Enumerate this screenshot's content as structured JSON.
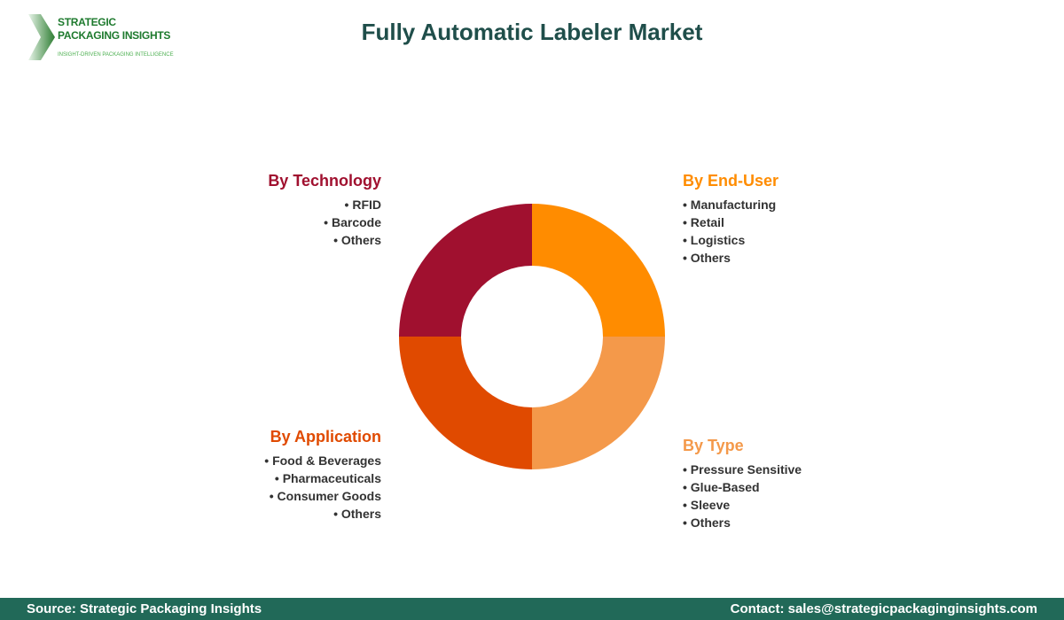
{
  "logo": {
    "line1": "STRATEGIC",
    "line2": "PACKAGING INSIGHTS",
    "tagline": "INSIGHT-DRIVEN PACKAGING INTELLIGENCE"
  },
  "title": "Fully Automatic Labeler Market",
  "segments": [
    {
      "title": "By Technology",
      "color": "#A0102F",
      "items": [
        "RFID",
        "Barcode",
        "Others"
      ]
    },
    {
      "title": "By End-User",
      "color": "#FF8C00",
      "items": [
        "Manufacturing",
        "Retail",
        "Logistics",
        "Others"
      ]
    },
    {
      "title": "By Type",
      "color": "#F4994A",
      "items": [
        "Pressure Sensitive",
        "Glue-Based",
        "Sleeve",
        "Others"
      ]
    },
    {
      "title": "By Application",
      "color": "#E04A00",
      "items": [
        "Food & Beverages",
        "Pharmaceuticals",
        "Consumer Goods",
        "Others"
      ]
    }
  ],
  "footer": {
    "source": "Source: Strategic Packaging Insights",
    "contact": "Contact: sales@strategicpackaginginsights.com"
  }
}
